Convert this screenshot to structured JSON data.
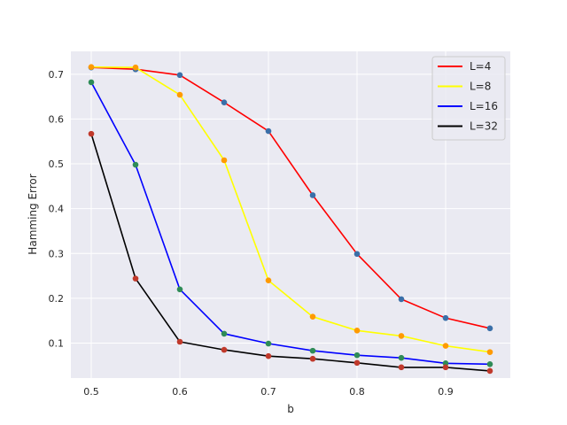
{
  "chart_data": {
    "type": "line",
    "xlabel": "b",
    "ylabel": "Hamming Error",
    "x": [
      0.5,
      0.55,
      0.6,
      0.65,
      0.7,
      0.75,
      0.8,
      0.85,
      0.9,
      0.95
    ],
    "xlim": [
      0.477,
      0.973
    ],
    "ylim": [
      0.022,
      0.751
    ],
    "x_ticks": [
      0.5,
      0.6,
      0.7,
      0.8,
      0.9
    ],
    "x_tick_labels": [
      "0.5",
      "0.6",
      "0.7",
      "0.8",
      "0.9"
    ],
    "y_ticks": [
      0.1,
      0.2,
      0.3,
      0.4,
      0.5,
      0.6,
      0.7
    ],
    "y_tick_labels": [
      "0.1",
      "0.2",
      "0.3",
      "0.4",
      "0.5",
      "0.6",
      "0.7"
    ],
    "grid": true,
    "legend_position": "top-right",
    "background_color": "#eaeaf2",
    "grid_color": "#ffffff",
    "series": [
      {
        "name": "L=4",
        "color": "#ff0000",
        "marker_color": "#3a6fa8",
        "values": [
          0.715,
          0.711,
          0.698,
          0.637,
          0.573,
          0.43,
          0.299,
          0.198,
          0.156,
          0.133
        ]
      },
      {
        "name": "L=8",
        "color": "#ffff00",
        "marker_color": "#ff9a00",
        "values": [
          0.716,
          0.715,
          0.654,
          0.508,
          0.24,
          0.159,
          0.128,
          0.116,
          0.094,
          0.08
        ]
      },
      {
        "name": "L=16",
        "color": "#0000ff",
        "marker_color": "#2e8b57",
        "values": [
          0.682,
          0.498,
          0.22,
          0.121,
          0.099,
          0.083,
          0.073,
          0.067,
          0.055,
          0.053
        ]
      },
      {
        "name": "L=32",
        "color": "#000000",
        "marker_color": "#c0392b",
        "values": [
          0.567,
          0.244,
          0.103,
          0.085,
          0.071,
          0.065,
          0.056,
          0.046,
          0.046,
          0.038
        ]
      }
    ]
  }
}
